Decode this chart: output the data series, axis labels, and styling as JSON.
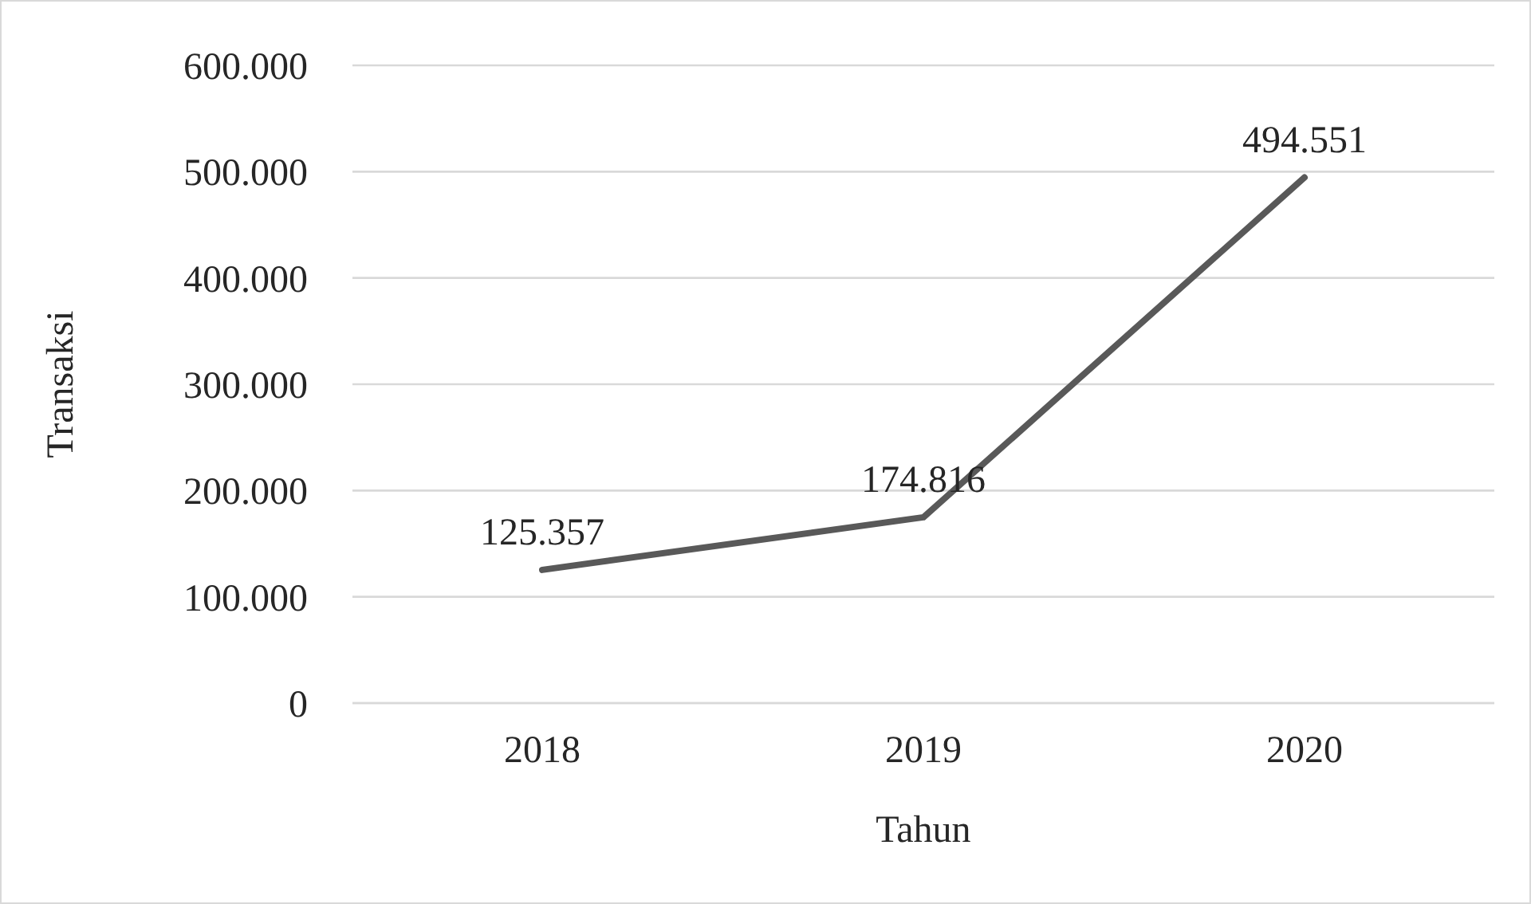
{
  "chart_data": {
    "type": "line",
    "xlabel": "Tahun",
    "ylabel": "Transaksi",
    "categories": [
      "2018",
      "2019",
      "2020"
    ],
    "series": [
      {
        "color": "#595959",
        "values": [
          125357,
          174816,
          494551
        ],
        "value_labels": [
          "125.357",
          "174.816",
          "494.551"
        ]
      }
    ],
    "ylim": [
      0,
      600000
    ],
    "yticks": [
      {
        "value": 0,
        "label": "0"
      },
      {
        "value": 100000,
        "label": "100.000"
      },
      {
        "value": 200000,
        "label": "200.000"
      },
      {
        "value": 300000,
        "label": "300.000"
      },
      {
        "value": 400000,
        "label": "400.000"
      },
      {
        "value": 500000,
        "label": "500.000"
      },
      {
        "value": 600000,
        "label": "600.000"
      }
    ],
    "grid": "y",
    "marker": "none",
    "line_style": "solid"
  }
}
